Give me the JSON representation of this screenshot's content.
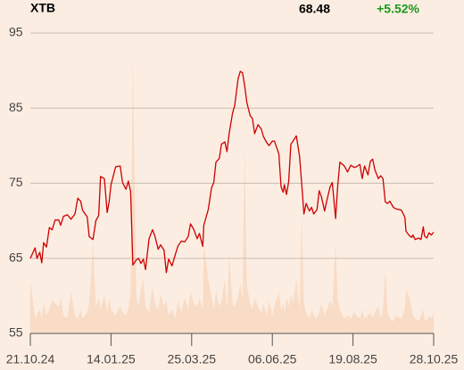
{
  "chart_data": {
    "type": "line",
    "title": "XTB",
    "last_price": "68.48",
    "change": "+5.52%",
    "change_color": "#1a9a1a",
    "x": [
      "21.10.24",
      "26.10.24",
      "28.10.24",
      "31.10.24",
      "02.11.24",
      "04.11.24",
      "07.11.24",
      "10.11.24",
      "13.11.24",
      "16.11.24",
      "20.11.24",
      "22.11.24",
      "25.11.24",
      "29.11.24",
      "03.12.24",
      "07.12.24",
      "10.12.24",
      "13.12.24",
      "15.12.24",
      "20.12.24",
      "22.12.24",
      "26.12.24",
      "29.12.24",
      "01.01.25",
      "03.01.25",
      "07.01.25",
      "10.01.25",
      "12.01.25",
      "14.01.25",
      "18.01.25",
      "22.01.25",
      "24.01.25",
      "27.01.25",
      "29.01.25",
      "31.01.25",
      "02.02.25",
      "05.02.25",
      "07.02.25",
      "09.02.25",
      "11.02.25",
      "13.02.25",
      "16.02.25",
      "19.02.25",
      "21.02.25",
      "24.02.25",
      "26.02.25",
      "01.03.25",
      "03.03.25",
      "05.03.25",
      "08.03.25",
      "11.03.25",
      "13.03.25",
      "16.03.25",
      "19.03.25",
      "22.03.25",
      "24.03.25",
      "27.03.25",
      "30.03.25",
      "01.04.25",
      "04.04.25",
      "05.04.25",
      "09.04.25",
      "12.04.25",
      "14.04.25",
      "16.04.25",
      "19.04.25",
      "21.04.25",
      "24.04.25",
      "26.04.25",
      "28.04.25",
      "01.05.25",
      "03.05.25",
      "06.05.25",
      "08.05.25",
      "10.05.25",
      "12.05.25",
      "14.05.25",
      "17.05.25",
      "19.05.25",
      "21.05.25",
      "24.05.25",
      "27.05.25",
      "29.05.25",
      "01.06.25",
      "03.06.25",
      "06.06.25",
      "08.06.25",
      "12.06.25",
      "14.06.25",
      "16.06.25",
      "17.06.25",
      "19.06.25",
      "21.06.25",
      "23.06.25",
      "25.06.25",
      "28.06.25",
      "01.07.25",
      "03.07.25",
      "05.07.25",
      "07.07.25",
      "10.07.25",
      "12.07.25",
      "14.07.25",
      "17.07.25",
      "19.07.25",
      "21.07.25",
      "24.07.25",
      "26.07.25",
      "29.07.25",
      "31.07.25",
      "03.08.25",
      "05.08.25",
      "07.08.25",
      "11.08.25",
      "14.08.25",
      "17.08.25",
      "20.08.25",
      "22.08.25",
      "25.08.25",
      "27.08.25",
      "29.08.25",
      "01.09.25",
      "03.09.25",
      "05.09.25",
      "07.09.25",
      "10.09.25",
      "12.09.25",
      "14.09.25",
      "16.09.25",
      "18.09.25",
      "20.09.25",
      "23.09.25",
      "25.09.25",
      "30.09.25",
      "03.10.25",
      "04.10.25",
      "07.10.25",
      "09.10.25",
      "10.10.25",
      "12.10.25",
      "15.10.25",
      "17.10.25",
      "19.10.25",
      "20.10.25",
      "22.10.25",
      "24.10.25",
      "26.10.25",
      "28.10.25"
    ],
    "series": [
      {
        "color": "#cc0000",
        "values": [
          65.0,
          66.4,
          65.0,
          65.8,
          64.4,
          67.1,
          66.5,
          69.1,
          68.8,
          70.1,
          70.1,
          69.4,
          70.6,
          70.8,
          70.2,
          70.9,
          73.0,
          72.6,
          71.4,
          70.5,
          67.9,
          67.5,
          70.0,
          70.7,
          75.9,
          75.6,
          71.1,
          72.5,
          74.8,
          77.2,
          77.3,
          75.1,
          74.2,
          75.3,
          73.9,
          64.1,
          64.8,
          65.0,
          64.3,
          64.9,
          63.5,
          67.6,
          68.8,
          68.0,
          66.2,
          66.8,
          66.1,
          63.1,
          64.9,
          64.0,
          65.6,
          66.6,
          67.3,
          67.2,
          67.9,
          69.6,
          68.8,
          67.6,
          68.3,
          66.6,
          69.4,
          71.5,
          74.4,
          75.1,
          77.8,
          78.3,
          80.2,
          80.5,
          79.2,
          81.7,
          84.3,
          85.4,
          88.9,
          89.9,
          89.7,
          88.0,
          85.7,
          84.0,
          83.6,
          81.6,
          82.8,
          82.2,
          81.2,
          80.4,
          80.0,
          80.6,
          80.6,
          78.9,
          74.5,
          73.8,
          74.8,
          73.5,
          75.2,
          80.2,
          80.6,
          81.3,
          78.6,
          74.8,
          70.9,
          72.3,
          71.3,
          71.8,
          70.9,
          71.5,
          74.0,
          73.2,
          71.3,
          72.7,
          74.5,
          75.1,
          70.3,
          74.7,
          77.8,
          77.3,
          76.5,
          77.4,
          77.1,
          77.2,
          77.5,
          75.6,
          77.3,
          76.1,
          77.9,
          78.2,
          76.8,
          75.6,
          76.0,
          75.6,
          72.5,
          72.3,
          72.6,
          71.8,
          71.6,
          71.4,
          70.5,
          68.6,
          68.0,
          67.8,
          68.1,
          67.5,
          67.7,
          67.5,
          69.2,
          68.0,
          67.7,
          68.4,
          68.1,
          68.48
        ]
      },
      {
        "color": "#f8dcc6",
        "axis": "y2",
        "values": [
          18,
          5,
          6,
          8,
          5,
          10,
          6,
          8,
          11,
          10,
          9,
          12,
          6,
          5,
          14,
          6,
          5,
          8,
          5,
          7,
          10,
          30,
          9,
          12,
          8,
          13,
          7,
          12,
          8,
          6,
          9,
          7,
          6,
          8,
          14,
          92,
          12,
          9,
          15,
          18,
          9,
          7,
          16,
          10,
          8,
          13,
          9,
          11,
          6,
          8,
          5,
          11,
          7,
          12,
          8,
          14,
          10,
          9,
          12,
          8,
          30,
          18,
          12,
          8,
          14,
          9,
          11,
          18,
          8,
          26,
          10,
          9,
          12,
          17,
          11,
          62,
          16,
          10,
          8,
          12,
          9,
          7,
          10,
          6,
          11,
          6,
          9,
          14,
          8,
          10,
          7,
          12,
          9,
          13,
          10,
          18,
          8,
          40,
          10,
          7,
          5,
          8,
          6,
          5,
          7,
          10,
          6,
          8,
          11,
          9,
          30,
          12,
          8,
          5,
          6,
          5,
          7,
          6,
          5,
          8,
          5,
          6,
          7,
          5,
          7,
          9,
          5,
          8,
          21,
          7,
          5,
          4,
          6,
          5,
          8,
          15,
          12,
          8,
          6,
          5,
          4,
          6,
          8,
          5,
          4,
          6,
          5,
          7
        ]
      }
    ],
    "xlim": [
      "21.10.24",
      "28.10.25"
    ],
    "xticks": [
      "21.10.24",
      "14.01.25",
      "25.03.25",
      "06.06.25",
      "19.08.25",
      "28.10.25"
    ],
    "ylim": [
      55,
      95
    ],
    "yticks": [
      55,
      65,
      75,
      85,
      95
    ],
    "y2lim": [
      0,
      100
    ],
    "grid": true
  }
}
